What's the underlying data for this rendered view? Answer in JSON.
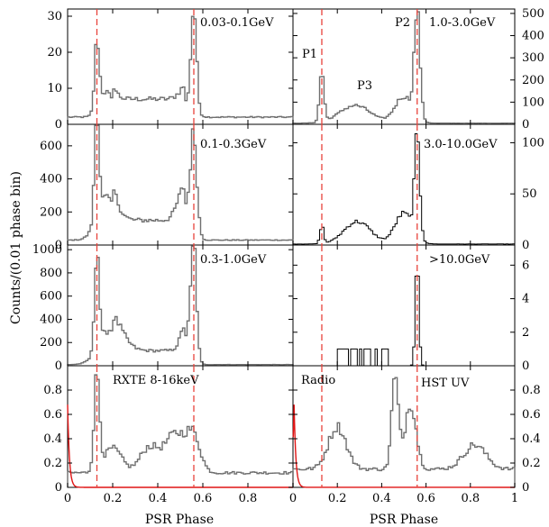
{
  "chart_data": {
    "type": "histogram",
    "ylabel": "Counts/(0.01 phase bin)",
    "xlabel": "PSR Phase",
    "reference_phases": [
      0.13,
      0.56
    ],
    "colors": {
      "reference_lines": "#e8433b",
      "radio_curve": "#e01515",
      "histogram": "#000000"
    },
    "panels": [
      {
        "id": "p1",
        "label": "0.03-0.1GeV",
        "ylim": [
          0,
          32
        ],
        "yticks": [
          0,
          10,
          20,
          30
        ],
        "axis": "left",
        "peaks": [
          {
            "phase": 0.13,
            "value": 21
          },
          {
            "phase": 0.56,
            "value": 31
          }
        ]
      },
      {
        "id": "p2",
        "label": "0.1-0.3GeV",
        "ylim": [
          0,
          730
        ],
        "yticks": [
          0,
          200,
          400,
          600
        ],
        "axis": "left",
        "peaks": [
          {
            "phase": 0.13,
            "value": 720
          },
          {
            "phase": 0.56,
            "value": 610
          }
        ]
      },
      {
        "id": "p3",
        "label": "0.3-1.0GeV",
        "ylim": [
          0,
          1040
        ],
        "yticks": [
          0,
          200,
          400,
          600,
          800,
          1000
        ],
        "axis": "left",
        "peaks": [
          {
            "phase": 0.13,
            "value": 920
          },
          {
            "phase": 0.56,
            "value": 1000
          }
        ]
      },
      {
        "id": "p4",
        "label": "RXTE 8-16keV",
        "ylim": [
          0,
          1.0
        ],
        "yticks": [
          0,
          0.2,
          0.4,
          0.6,
          0.8
        ],
        "axis": "left",
        "peaks": [
          {
            "phase": 0.13,
            "value": 0.92
          },
          {
            "phase": 0.56,
            "value": 0.48
          }
        ]
      },
      {
        "id": "p5",
        "label": "1.0-3.0GeV",
        "ylim": [
          0,
          520
        ],
        "yticks": [
          0,
          100,
          200,
          300,
          400,
          500
        ],
        "axis": "right",
        "annotations": [
          "P1",
          "P2",
          "P3"
        ],
        "peaks": [
          {
            "phase": 0.13,
            "value": 270
          },
          {
            "phase": 0.56,
            "value": 500
          }
        ]
      },
      {
        "id": "p6",
        "label": "3.0-10.0GeV",
        "ylim": [
          0,
          118
        ],
        "yticks": [
          0,
          50,
          100
        ],
        "axis": "right",
        "peaks": [
          {
            "phase": 0.13,
            "value": 20
          },
          {
            "phase": 0.56,
            "value": 110
          }
        ]
      },
      {
        "id": "p7",
        "label": ">10.0GeV",
        "ylim": [
          0,
          7.2
        ],
        "yticks": [
          0,
          2,
          4,
          6
        ],
        "axis": "right",
        "peaks": [
          {
            "phase": 0.56,
            "value": 7
          }
        ]
      },
      {
        "id": "p8",
        "labels": [
          "Radio",
          "HST UV"
        ],
        "ylim": [
          0,
          1.0
        ],
        "yticks": [
          0,
          0.2,
          0.4,
          0.6,
          0.8
        ],
        "axis": "right",
        "peaks": [
          {
            "phase": 0.46,
            "value": 0.93
          },
          {
            "phase": 0.54,
            "value": 0.63
          }
        ]
      }
    ],
    "xticks_left": [
      0,
      0.2,
      0.4,
      0.6,
      0.8
    ],
    "xticks_right": [
      0,
      0.2,
      0.4,
      0.6,
      0.8,
      1
    ]
  }
}
